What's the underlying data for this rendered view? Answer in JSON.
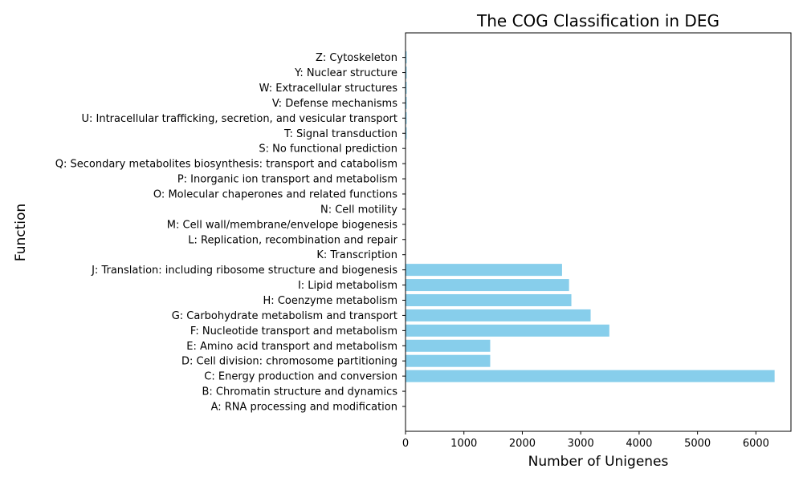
{
  "chart_data": {
    "type": "bar",
    "orientation": "horizontal",
    "title": "The COG Classification in DEG",
    "xlabel": "Number of Unigenes",
    "ylabel": "Function",
    "xlim": [
      0,
      6600
    ],
    "xticks": [
      0,
      1000,
      2000,
      3000,
      4000,
      5000,
      6000
    ],
    "grid": false,
    "bar_color": "#87ceeb",
    "categories": [
      "A: RNA processing and modification",
      "B: Chromatin structure and dynamics",
      "C: Energy production and conversion",
      "D: Cell division: chromosome partitioning",
      "E: Amino acid transport and metabolism",
      "F: Nucleotide transport and metabolism",
      "G: Carbohydrate metabolism and transport",
      "H: Coenzyme metabolism ",
      "I: Lipid metabolism",
      "J: Translation: including ribosome structure and biogenesis",
      "K: Transcription",
      "L: Replication, recombination and repair",
      "M: Cell wall/membrane/envelope biogenesis",
      "N: Cell motility",
      "O: Molecular chaperones and related functions ",
      "P: Inorganic ion transport and metabolism",
      "Q: Secondary metabolites biosynthesis: transport and catabolism",
      "S: No functional prediction",
      "T: Signal transduction",
      "U: Intracellular trafficking, secretion, and vesicular transport",
      "V: Defense mechanisms",
      "W: Extracellular structures",
      "Y: Nuclear structure",
      "Z: Cytoskeleton"
    ],
    "values": [
      0,
      0,
      6320,
      1450,
      1450,
      3490,
      3170,
      2840,
      2800,
      2680,
      0,
      0,
      0,
      0,
      0,
      0,
      0,
      0,
      20,
      20,
      20,
      20,
      20,
      20
    ]
  }
}
